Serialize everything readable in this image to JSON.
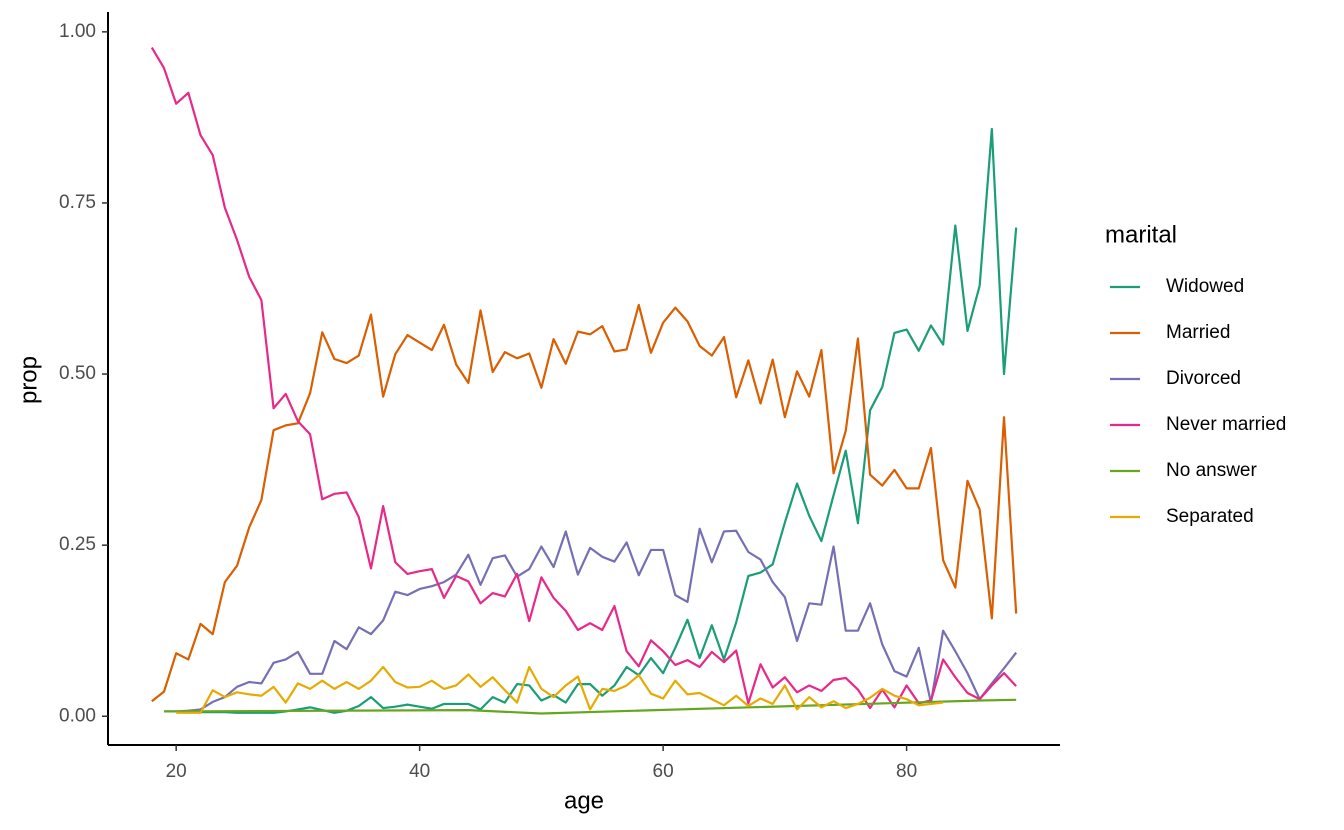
{
  "chart_data": {
    "type": "line",
    "xlabel": "age",
    "ylabel": "prop",
    "legend_title": "marital",
    "xlim": [
      14.4,
      92.6
    ],
    "ylim": [
      -0.042,
      1.029
    ],
    "xticks": [
      20,
      40,
      60,
      80
    ],
    "yticks": [
      {
        "value": 0,
        "label": "0.00"
      },
      {
        "value": 0.25,
        "label": "0.25"
      },
      {
        "value": 0.5,
        "label": "0.50"
      },
      {
        "value": 0.75,
        "label": "0.75"
      },
      {
        "value": 1,
        "label": "1.00"
      }
    ],
    "legend_position": "right",
    "grid": false,
    "series": [
      {
        "name": "Widowed",
        "color": "#1b9e77",
        "x": [
          19,
          20,
          21,
          22,
          23,
          24,
          25,
          26,
          27,
          28,
          29,
          30,
          31,
          32,
          33,
          34,
          35,
          36,
          37,
          38,
          39,
          40,
          41,
          42,
          43,
          44,
          45,
          46,
          47,
          48,
          49,
          50,
          51,
          52,
          53,
          54,
          55,
          56,
          57,
          58,
          59,
          60,
          61,
          62,
          63,
          64,
          65,
          66,
          67,
          68,
          69,
          70,
          71,
          72,
          73,
          74,
          75,
          76,
          77,
          78,
          79,
          80,
          81,
          82,
          83,
          84,
          85,
          86,
          87,
          88,
          89
        ],
        "values": [
          0.007,
          0.007,
          0.006,
          0.006,
          0.006,
          0.006,
          0.005,
          0.005,
          0.005,
          0.005,
          0.007,
          0.01,
          0.013,
          0.009,
          0.005,
          0.008,
          0.015,
          0.028,
          0.012,
          0.014,
          0.017,
          0.014,
          0.011,
          0.018,
          0.018,
          0.018,
          0.01,
          0.028,
          0.02,
          0.047,
          0.045,
          0.023,
          0.031,
          0.02,
          0.047,
          0.047,
          0.03,
          0.045,
          0.072,
          0.06,
          0.085,
          0.063,
          0.1,
          0.141,
          0.085,
          0.133,
          0.083,
          0.137,
          0.205,
          0.21,
          0.222,
          0.283,
          0.34,
          0.293,
          0.256,
          0.323,
          0.388,
          0.282,
          0.447,
          0.481,
          0.56,
          0.565,
          0.534,
          0.571,
          0.543,
          0.717,
          0.563,
          0.629,
          0.858,
          0.5,
          0.714
        ]
      },
      {
        "name": "Married",
        "color": "#d95f02",
        "x": [
          18,
          19,
          20,
          21,
          22,
          23,
          24,
          25,
          26,
          27,
          28,
          29,
          30,
          31,
          32,
          33,
          34,
          35,
          36,
          37,
          38,
          39,
          40,
          41,
          42,
          43,
          44,
          45,
          46,
          47,
          48,
          49,
          50,
          51,
          52,
          53,
          54,
          55,
          56,
          57,
          58,
          59,
          60,
          61,
          62,
          63,
          64,
          65,
          66,
          67,
          68,
          69,
          70,
          71,
          72,
          73,
          74,
          75,
          76,
          77,
          78,
          79,
          80,
          81,
          82,
          83,
          84,
          85,
          86,
          87,
          88,
          89
        ],
        "values": [
          0.022,
          0.036,
          0.092,
          0.083,
          0.135,
          0.12,
          0.196,
          0.22,
          0.276,
          0.316,
          0.418,
          0.425,
          0.428,
          0.472,
          0.561,
          0.522,
          0.516,
          0.527,
          0.587,
          0.467,
          0.529,
          0.557,
          0.546,
          0.535,
          0.572,
          0.514,
          0.487,
          0.593,
          0.503,
          0.532,
          0.523,
          0.53,
          0.48,
          0.551,
          0.515,
          0.562,
          0.558,
          0.57,
          0.533,
          0.536,
          0.601,
          0.531,
          0.575,
          0.597,
          0.577,
          0.541,
          0.527,
          0.554,
          0.466,
          0.52,
          0.457,
          0.521,
          0.437,
          0.504,
          0.467,
          0.535,
          0.355,
          0.417,
          0.552,
          0.353,
          0.337,
          0.36,
          0.333,
          0.333,
          0.392,
          0.228,
          0.188,
          0.344,
          0.302,
          0.143,
          0.437,
          0.15
        ]
      },
      {
        "name": "Divorced",
        "color": "#7570b3",
        "x": [
          19,
          20,
          21,
          22,
          23,
          24,
          25,
          26,
          27,
          28,
          29,
          30,
          31,
          32,
          33,
          34,
          35,
          36,
          37,
          38,
          39,
          40,
          41,
          42,
          43,
          44,
          45,
          46,
          47,
          48,
          49,
          50,
          51,
          52,
          53,
          54,
          55,
          56,
          57,
          58,
          59,
          60,
          61,
          62,
          63,
          64,
          65,
          66,
          67,
          68,
          69,
          70,
          71,
          72,
          73,
          74,
          75,
          76,
          77,
          78,
          79,
          80,
          81,
          82,
          83,
          84,
          85,
          86,
          87,
          88,
          89
        ],
        "values": [
          0.007,
          0.007,
          0.008,
          0.01,
          0.021,
          0.028,
          0.043,
          0.05,
          0.048,
          0.078,
          0.083,
          0.094,
          0.062,
          0.062,
          0.11,
          0.098,
          0.13,
          0.12,
          0.14,
          0.182,
          0.177,
          0.186,
          0.19,
          0.196,
          0.207,
          0.236,
          0.192,
          0.231,
          0.235,
          0.204,
          0.215,
          0.248,
          0.218,
          0.27,
          0.207,
          0.246,
          0.233,
          0.226,
          0.254,
          0.206,
          0.243,
          0.243,
          0.177,
          0.167,
          0.274,
          0.225,
          0.27,
          0.271,
          0.24,
          0.229,
          0.196,
          0.174,
          0.11,
          0.165,
          0.163,
          0.248,
          0.125,
          0.125,
          0.165,
          0.105,
          0.066,
          0.058,
          0.1,
          0.02,
          0.125,
          0.095,
          0.063,
          0.025,
          0.048,
          0.07,
          0.093
        ]
      },
      {
        "name": "Never married",
        "color": "#e7298a",
        "x": [
          18,
          19,
          20,
          21,
          22,
          23,
          24,
          25,
          26,
          27,
          28,
          29,
          30,
          31,
          32,
          33,
          34,
          35,
          36,
          37,
          38,
          39,
          40,
          41,
          42,
          43,
          44,
          45,
          46,
          47,
          48,
          49,
          50,
          51,
          52,
          53,
          54,
          55,
          56,
          57,
          58,
          59,
          60,
          61,
          62,
          63,
          64,
          65,
          66,
          67,
          68,
          69,
          70,
          71,
          72,
          73,
          74,
          75,
          76,
          77,
          78,
          79,
          80,
          81,
          82,
          83,
          84,
          85,
          86,
          87,
          88,
          89
        ],
        "values": [
          0.977,
          0.947,
          0.895,
          0.911,
          0.849,
          0.82,
          0.743,
          0.696,
          0.642,
          0.608,
          0.45,
          0.471,
          0.431,
          0.412,
          0.317,
          0.325,
          0.327,
          0.291,
          0.216,
          0.307,
          0.225,
          0.208,
          0.212,
          0.215,
          0.173,
          0.205,
          0.197,
          0.165,
          0.18,
          0.175,
          0.208,
          0.139,
          0.203,
          0.173,
          0.154,
          0.126,
          0.136,
          0.126,
          0.161,
          0.095,
          0.073,
          0.111,
          0.095,
          0.075,
          0.082,
          0.072,
          0.094,
          0.079,
          0.096,
          0.019,
          0.076,
          0.042,
          0.057,
          0.035,
          0.045,
          0.037,
          0.053,
          0.056,
          0.039,
          0.012,
          0.039,
          0.013,
          0.045,
          0.019,
          0.023,
          0.083,
          0.057,
          0.034,
          0.025,
          0.045,
          0.063,
          0.044
        ]
      },
      {
        "name": "No answer",
        "color": "#66a61e",
        "x": [
          19,
          44,
          50,
          86,
          89
        ],
        "values": [
          0.007,
          0.009,
          0.004,
          0.023,
          0.024
        ]
      },
      {
        "name": "Separated",
        "color": "#e6ab02",
        "x": [
          20,
          21,
          22,
          23,
          24,
          25,
          26,
          27,
          28,
          29,
          30,
          31,
          32,
          33,
          34,
          35,
          36,
          37,
          38,
          39,
          40,
          41,
          42,
          43,
          44,
          45,
          46,
          47,
          48,
          49,
          50,
          51,
          52,
          53,
          54,
          55,
          56,
          57,
          58,
          59,
          60,
          61,
          62,
          63,
          64,
          65,
          66,
          67,
          68,
          69,
          70,
          71,
          72,
          73,
          74,
          75,
          76,
          77,
          78,
          79,
          80,
          81,
          82,
          83
        ],
        "values": [
          0.005,
          0.005,
          0.005,
          0.038,
          0.028,
          0.035,
          0.032,
          0.03,
          0.043,
          0.02,
          0.048,
          0.04,
          0.052,
          0.04,
          0.05,
          0.04,
          0.052,
          0.072,
          0.05,
          0.042,
          0.043,
          0.052,
          0.04,
          0.045,
          0.061,
          0.043,
          0.057,
          0.038,
          0.02,
          0.072,
          0.04,
          0.028,
          0.045,
          0.058,
          0.01,
          0.04,
          0.037,
          0.045,
          0.06,
          0.033,
          0.026,
          0.052,
          0.032,
          0.034,
          0.025,
          0.016,
          0.03,
          0.015,
          0.026,
          0.018,
          0.045,
          0.01,
          0.028,
          0.013,
          0.022,
          0.012,
          0.018,
          0.027,
          0.04,
          0.03,
          0.025,
          0.016,
          0.018,
          0.02
        ]
      }
    ]
  }
}
